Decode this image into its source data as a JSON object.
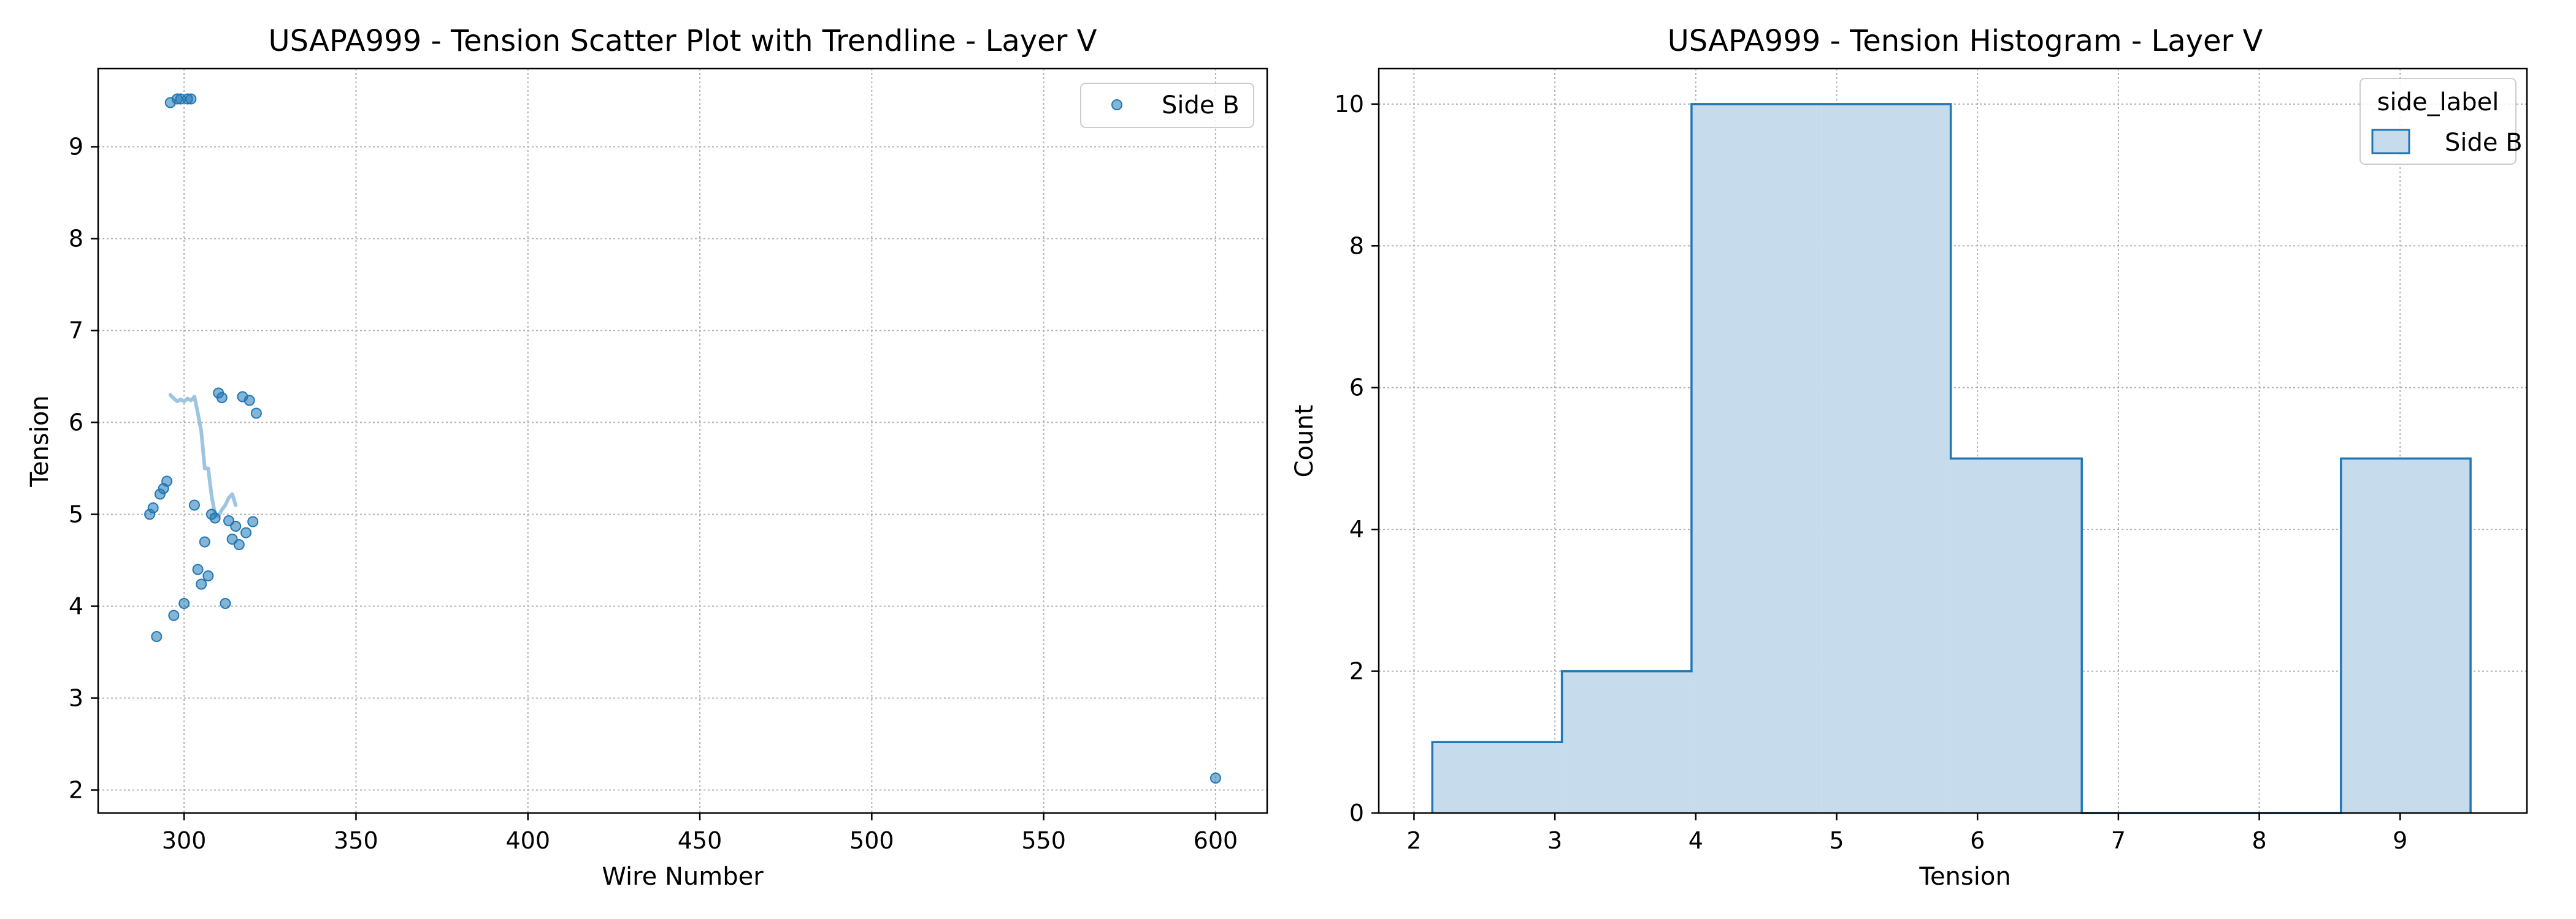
{
  "chart_data": [
    {
      "type": "scatter",
      "title": "USAPA999 - Tension Scatter Plot with Trendline - Layer V",
      "xlabel": "Wire Number",
      "ylabel": "Tension",
      "xlim": [
        275,
        615
      ],
      "ylim": [
        1.75,
        9.85
      ],
      "xticks": [
        300,
        350,
        400,
        450,
        500,
        550,
        600
      ],
      "yticks": [
        2,
        3,
        4,
        5,
        6,
        7,
        8,
        9
      ],
      "grid": true,
      "legend_position": "top-right",
      "colors": {
        "points": "#1f77b4",
        "trend": "#9ec5e0"
      },
      "series": [
        {
          "name": "Side B",
          "points": [
            [
              290,
              5.0
            ],
            [
              291,
              5.07
            ],
            [
              292,
              3.67
            ],
            [
              293,
              5.22
            ],
            [
              294,
              5.28
            ],
            [
              295,
              5.36
            ],
            [
              296,
              9.48
            ],
            [
              297,
              3.9
            ],
            [
              298,
              9.52
            ],
            [
              299,
              9.52
            ],
            [
              300,
              4.03
            ],
            [
              301,
              9.52
            ],
            [
              302,
              9.52
            ],
            [
              303,
              5.1
            ],
            [
              304,
              4.4
            ],
            [
              305,
              4.24
            ],
            [
              306,
              4.7
            ],
            [
              307,
              4.33
            ],
            [
              308,
              5.0
            ],
            [
              309,
              4.96
            ],
            [
              310,
              6.32
            ],
            [
              311,
              6.27
            ],
            [
              312,
              4.03
            ],
            [
              313,
              4.93
            ],
            [
              314,
              4.73
            ],
            [
              315,
              4.87
            ],
            [
              316,
              4.67
            ],
            [
              317,
              6.28
            ],
            [
              318,
              4.8
            ],
            [
              319,
              6.24
            ],
            [
              320,
              4.92
            ],
            [
              321,
              6.1
            ],
            [
              600,
              2.13
            ]
          ]
        }
      ],
      "trendline": [
        [
          296,
          6.3
        ],
        [
          297,
          6.26
        ],
        [
          298,
          6.23
        ],
        [
          299,
          6.25
        ],
        [
          300,
          6.23
        ],
        [
          301,
          6.26
        ],
        [
          302,
          6.24
        ],
        [
          303,
          6.28
        ],
        [
          304,
          6.1
        ],
        [
          305,
          5.9
        ],
        [
          306,
          5.5
        ],
        [
          307,
          5.5
        ],
        [
          308,
          5.2
        ],
        [
          309,
          5.0
        ],
        [
          310,
          4.98
        ],
        [
          311,
          5.05
        ],
        [
          312,
          5.1
        ],
        [
          313,
          5.18
        ],
        [
          314,
          5.22
        ],
        [
          315,
          5.1
        ]
      ]
    },
    {
      "type": "histogram",
      "title": "USAPA999 - Tension Histogram - Layer V",
      "xlabel": "Tension",
      "ylabel": "Count",
      "xlim": [
        1.75,
        9.9
      ],
      "ylim": [
        0,
        10.5
      ],
      "xticks": [
        2,
        3,
        4,
        5,
        6,
        7,
        8,
        9
      ],
      "yticks": [
        0,
        2,
        4,
        6,
        8,
        10
      ],
      "grid": true,
      "legend_title": "side_label",
      "legend_position": "top-right",
      "colors": {
        "fill": "#c6dbec",
        "edge": "#1f77b4"
      },
      "series": [
        {
          "name": "Side B",
          "bin_edges": [
            2.13,
            3.05,
            3.97,
            4.89,
            5.81,
            6.74,
            7.66,
            8.58,
            9.5
          ],
          "counts": [
            1,
            2,
            10,
            10,
            5,
            0,
            0,
            5
          ]
        }
      ]
    }
  ]
}
